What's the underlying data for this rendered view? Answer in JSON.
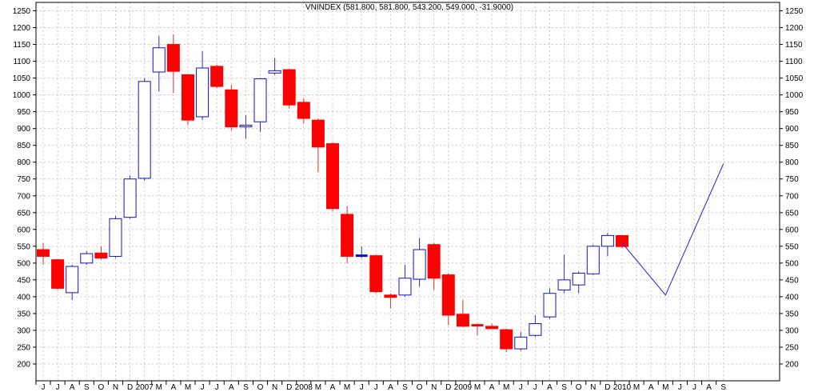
{
  "chart_data": {
    "type": "candlestick",
    "title": "VNINDEX (581.800, 581.800, 543.200, 549.000, -31.9000)",
    "ylim": [
      150,
      1275
    ],
    "y_ticks": [
      200,
      250,
      300,
      350,
      400,
      450,
      500,
      550,
      600,
      650,
      700,
      750,
      800,
      850,
      900,
      950,
      1000,
      1050,
      1100,
      1150,
      1200,
      1250
    ],
    "grid": true,
    "x_labels": [
      "J",
      "J",
      "A",
      "S",
      "O",
      "N",
      "D",
      "2007",
      "M",
      "A",
      "M",
      "J",
      "J",
      "A",
      "S",
      "O",
      "N",
      "D",
      "2008",
      "M",
      "A",
      "M",
      "J",
      "J",
      "A",
      "S",
      "O",
      "N",
      "D",
      "2009",
      "M",
      "A",
      "M",
      "J",
      "J",
      "A",
      "S",
      "O",
      "N",
      "D",
      "2010",
      "M",
      "A",
      "M",
      "J",
      "J",
      "A",
      "S"
    ],
    "candles": [
      {
        "o": 540,
        "h": 560,
        "l": 495,
        "c": 520
      },
      {
        "o": 510,
        "h": 512,
        "l": 420,
        "c": 425
      },
      {
        "o": 412,
        "h": 495,
        "l": 390,
        "c": 490
      },
      {
        "o": 500,
        "h": 535,
        "l": 495,
        "c": 528
      },
      {
        "o": 530,
        "h": 550,
        "l": 510,
        "c": 515
      },
      {
        "o": 520,
        "h": 640,
        "l": 515,
        "c": 632
      },
      {
        "o": 636,
        "h": 760,
        "l": 632,
        "c": 750
      },
      {
        "o": 752,
        "h": 1050,
        "l": 745,
        "c": 1040
      },
      {
        "o": 1068,
        "h": 1175,
        "l": 1010,
        "c": 1140
      },
      {
        "o": 1150,
        "h": 1180,
        "l": 1005,
        "c": 1070
      },
      {
        "o": 1060,
        "h": 1062,
        "l": 910,
        "c": 925
      },
      {
        "o": 935,
        "h": 1130,
        "l": 925,
        "c": 1080
      },
      {
        "o": 1085,
        "h": 1090,
        "l": 1020,
        "c": 1025
      },
      {
        "o": 1015,
        "h": 1030,
        "l": 895,
        "c": 905
      },
      {
        "o": 905,
        "h": 940,
        "l": 870,
        "c": 910
      },
      {
        "o": 920,
        "h": 1050,
        "l": 890,
        "c": 1048
      },
      {
        "o": 1065,
        "h": 1110,
        "l": 1060,
        "c": 1072
      },
      {
        "o": 1075,
        "h": 1078,
        "l": 960,
        "c": 970
      },
      {
        "o": 978,
        "h": 990,
        "l": 915,
        "c": 930
      },
      {
        "o": 925,
        "h": 930,
        "l": 770,
        "c": 845
      },
      {
        "o": 855,
        "h": 860,
        "l": 655,
        "c": 662
      },
      {
        "o": 645,
        "h": 670,
        "l": 500,
        "c": 520
      },
      {
        "o": 520,
        "h": 550,
        "l": 515,
        "c": 522
      },
      {
        "o": 522,
        "h": 525,
        "l": 410,
        "c": 415
      },
      {
        "o": 405,
        "h": 410,
        "l": 365,
        "c": 398
      },
      {
        "o": 405,
        "h": 495,
        "l": 400,
        "c": 455
      },
      {
        "o": 452,
        "h": 575,
        "l": 430,
        "c": 540
      },
      {
        "o": 555,
        "h": 560,
        "l": 420,
        "c": 455
      },
      {
        "o": 465,
        "h": 470,
        "l": 315,
        "c": 345
      },
      {
        "o": 348,
        "h": 390,
        "l": 310,
        "c": 312
      },
      {
        "o": 315,
        "h": 320,
        "l": 285,
        "c": 312
      },
      {
        "o": 312,
        "h": 320,
        "l": 305,
        "c": 305
      },
      {
        "o": 302,
        "h": 305,
        "l": 235,
        "c": 245
      },
      {
        "o": 245,
        "h": 295,
        "l": 240,
        "c": 280
      },
      {
        "o": 285,
        "h": 345,
        "l": 280,
        "c": 320
      },
      {
        "o": 340,
        "h": 425,
        "l": 335,
        "c": 410
      },
      {
        "o": 420,
        "h": 525,
        "l": 410,
        "c": 450
      },
      {
        "o": 435,
        "h": 475,
        "l": 410,
        "c": 470
      },
      {
        "o": 468,
        "h": 555,
        "l": 465,
        "c": 550
      },
      {
        "o": 550,
        "h": 590,
        "l": 520,
        "c": 582
      },
      {
        "o": 581.8,
        "h": 581.8,
        "l": 543.2,
        "c": 549
      }
    ],
    "projection_line": [
      {
        "index": 40,
        "value": 560
      },
      {
        "index": 43,
        "value": 405
      },
      {
        "index": 47,
        "value": 795
      }
    ],
    "colors": {
      "up_body": "#ffffff",
      "up_stroke": "#1010d0",
      "down_body": "#ff0000",
      "down_stroke": "#ff0000",
      "wick": "#3030c0",
      "grid": "#c8c8c8",
      "projection": "#2020d0"
    }
  }
}
